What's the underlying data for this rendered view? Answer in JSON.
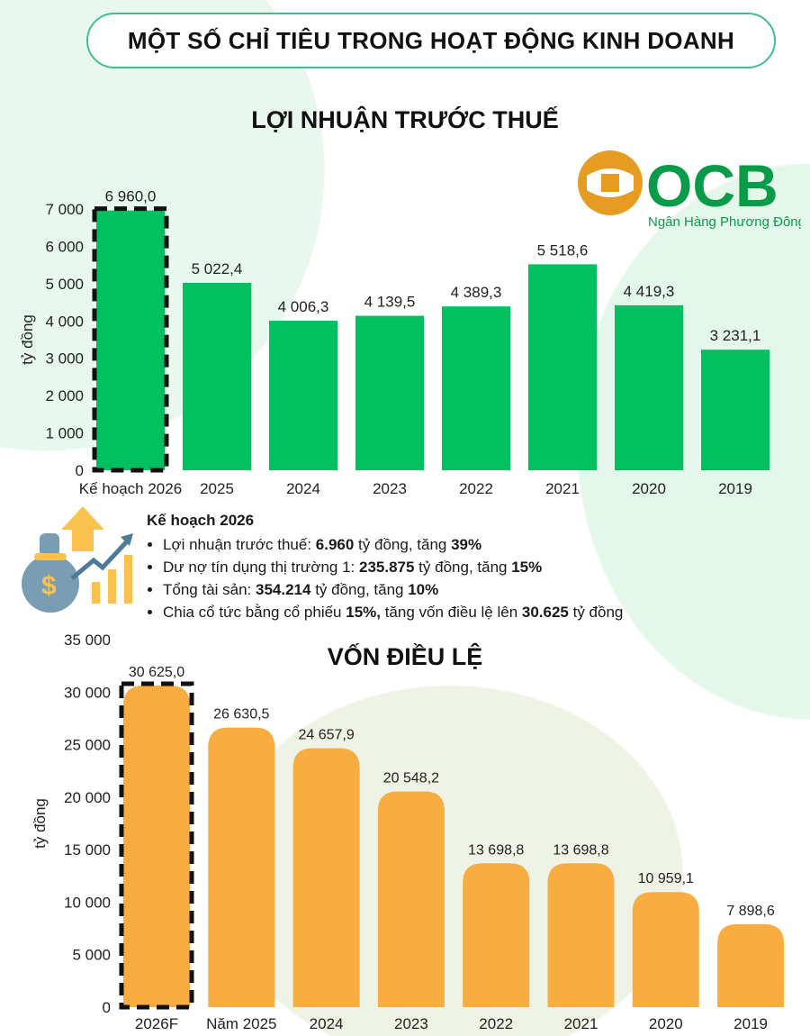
{
  "header": {
    "title": "MỘT SỐ CHỈ TIÊU TRONG HOẠT ĐỘNG KINH DOANH"
  },
  "logo": {
    "brand": "OCB",
    "tagline": "Ngân Hàng Phương Đông",
    "colors": {
      "green": "#0a9b48",
      "orange": "#e69b22"
    }
  },
  "plan": {
    "heading": "Kế hoạch 2026",
    "items": [
      {
        "pre": "Lợi nhuận trước thuế: ",
        "b1": "6.960",
        "mid": " tỷ đồng, tăng ",
        "b2": "39%",
        "post": ""
      },
      {
        "pre": "Dư nợ tín dụng thị trường 1: ",
        "b1": "235.875",
        "mid": " tỷ đồng, tăng ",
        "b2": "15%",
        "post": ""
      },
      {
        "pre": "Tổng tài sản: ",
        "b1": "354.214",
        "mid": " tỷ đồng, tăng ",
        "b2": "10%",
        "post": ""
      },
      {
        "pre": "Chia cổ tức bằng cổ phiếu ",
        "b1": "15%,",
        "mid": " tăng vốn điều lệ lên ",
        "b2": "30.625",
        "post": " tỷ đồng"
      }
    ]
  },
  "chart_data": [
    {
      "type": "bar",
      "title": "LỢI NHUẬN TRƯỚC THUẾ",
      "ylabel": "tỷ đồng",
      "ylim": [
        0,
        7000
      ],
      "yticks": [
        0,
        1000,
        2000,
        3000,
        4000,
        5000,
        6000,
        7000
      ],
      "ytick_labels": [
        "0",
        "1 000",
        "2 000",
        "3 000",
        "4 000",
        "5 000",
        "6 000",
        "7 000"
      ],
      "categories": [
        "Kế hoạch 2026",
        "2025",
        "2024",
        "2023",
        "2022",
        "2021",
        "2020",
        "2019"
      ],
      "values": [
        6960.0,
        5022.4,
        4006.3,
        4139.5,
        4389.3,
        5518.6,
        4419.3,
        3231.1
      ],
      "data_labels": [
        "6 960,0",
        "5 022,4",
        "4 006,3",
        "4 139,5",
        "4 389,3",
        "5 518,6",
        "4 419,3",
        "3 231,1"
      ],
      "highlight_index": 0,
      "color": "#00c060",
      "grid": false
    },
    {
      "type": "bar",
      "title": "VỐN ĐIỀU LỆ",
      "ylabel": "tỷ đồng",
      "ylim": [
        0,
        35000
      ],
      "yticks": [
        0,
        5000,
        10000,
        15000,
        20000,
        25000,
        30000,
        35000
      ],
      "ytick_labels": [
        "0",
        "5 000",
        "10 000",
        "15 000",
        "20 000",
        "25 000",
        "30 000",
        "35 000"
      ],
      "categories": [
        "2026F",
        "Năm 2025",
        "2024",
        "2023",
        "2022",
        "2021",
        "2020",
        "2019"
      ],
      "values": [
        30625.0,
        26630.5,
        24657.9,
        20548.2,
        13698.8,
        13698.8,
        10959.1,
        7898.6
      ],
      "data_labels": [
        "30 625,0",
        "26 630,5",
        "24 657,9",
        "20 548,2",
        "13 698,8",
        "13 698,8",
        "10 959,1",
        "7 898,6"
      ],
      "highlight_index": 0,
      "color": "#f9ac40",
      "grid": false
    }
  ]
}
